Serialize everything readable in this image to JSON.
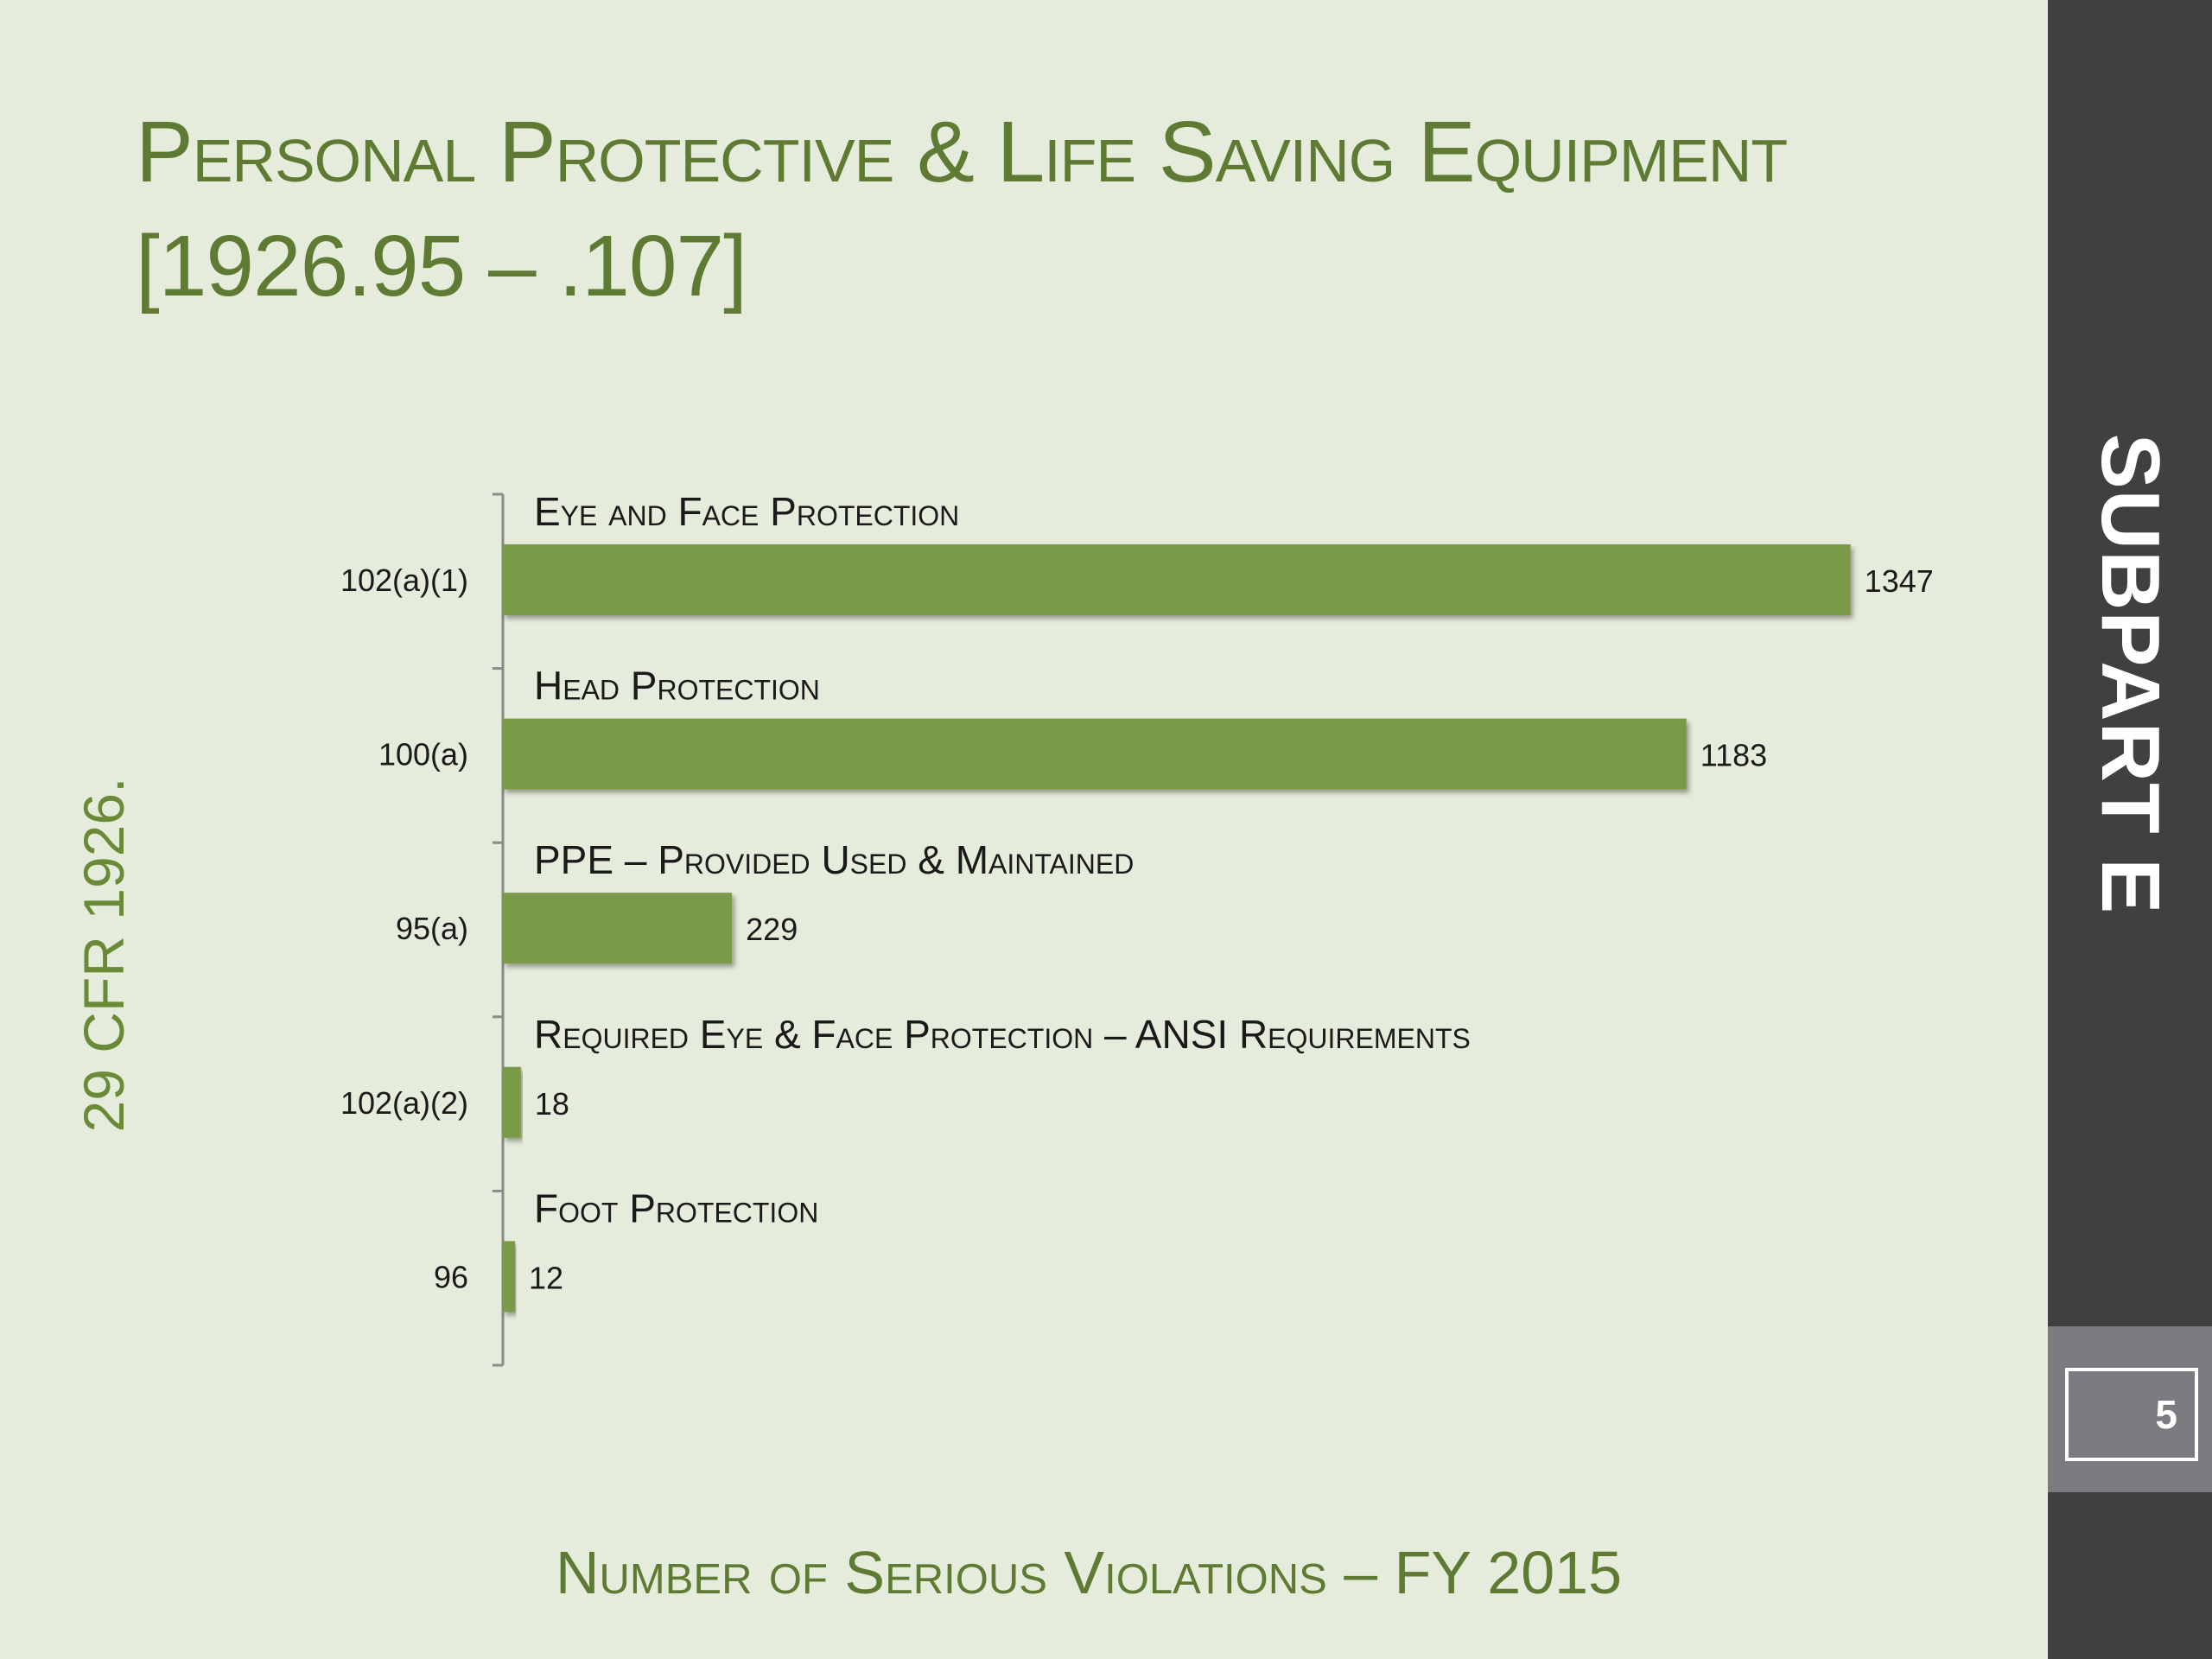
{
  "slide": {
    "title_line1": "Personal Protective &  Life Saving Equipment",
    "title_line2": "[1926.95 – .107]",
    "side_label": "29 CFR 1926.",
    "footer": "Number of Serious Violations – FY 2015"
  },
  "sidebar": {
    "subpart": "SUBPART E",
    "page_number": "5"
  },
  "colors": {
    "accent_green": "#5e7a33",
    "bar_green": "#7a9a4a",
    "background": "#e6ecdb",
    "panel_dark": "#404040",
    "panel_gray": "#7a7c80"
  },
  "chart_data": {
    "type": "bar",
    "orientation": "horizontal",
    "categories": [
      "102(a)(1)",
      "100(a)",
      "95(a)",
      "102(a)(2)",
      "96"
    ],
    "category_titles": [
      "Eye and Face Protection",
      "Head Protection",
      "PPE – Provided Used & Maintained",
      "Required Eye & Face Protection – ANSI Requirements",
      "Foot Protection"
    ],
    "values": [
      1347,
      1183,
      229,
      18,
      12
    ],
    "title": "Number of Serious Violations – FY 2015",
    "xlim": [
      0,
      1900
    ],
    "grid": false,
    "legend": "none"
  }
}
